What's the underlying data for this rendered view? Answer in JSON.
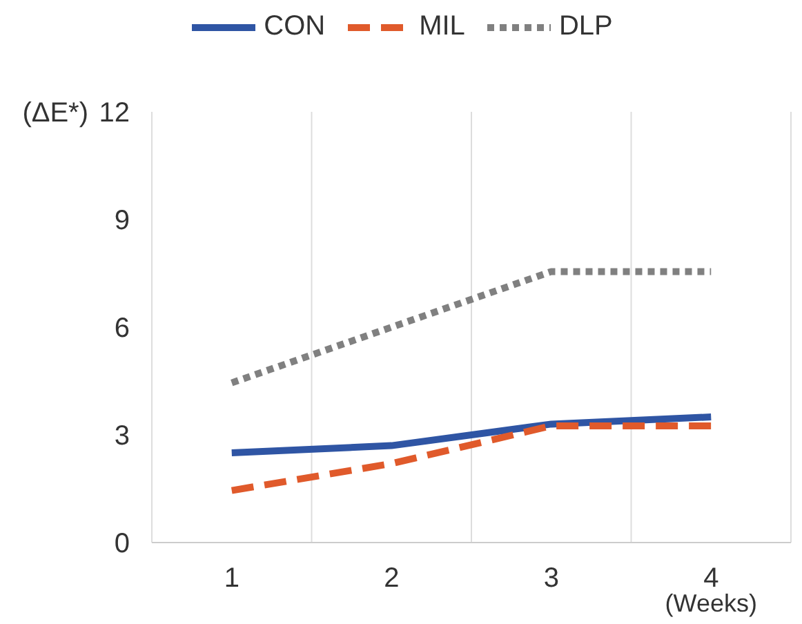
{
  "chart_data": {
    "type": "line",
    "xlabel": "(Weeks)",
    "ylabel": "(ΔE*)",
    "categories": [
      "1",
      "2",
      "3",
      "4"
    ],
    "series": [
      {
        "name": "CON",
        "color": "#2f55a4",
        "values": [
          2.5,
          2.7,
          3.3,
          3.5
        ],
        "line_style": "solid"
      },
      {
        "name": "MIL",
        "color": "#e05a2b",
        "values": [
          1.45,
          2.2,
          3.25,
          3.25
        ],
        "line_style": "dashed"
      },
      {
        "name": "DLP",
        "color": "#808080",
        "values": [
          4.45,
          6.0,
          7.55,
          7.55
        ],
        "line_style": "dotted"
      }
    ],
    "ylim": [
      0,
      12
    ],
    "yticks": [
      0,
      3,
      6,
      9,
      12
    ],
    "grid": "x",
    "legend": "top",
    "marker": "none"
  }
}
